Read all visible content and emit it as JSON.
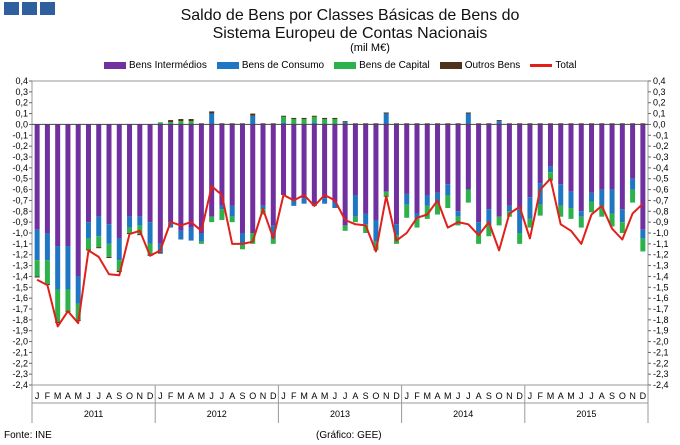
{
  "header": {
    "logo_colors": [
      "#2f5f9e",
      "#2f5f9e",
      "#2f5f9e"
    ],
    "title_line1": "Saldo de Bens por Classes Básicas de Bens do",
    "title_line2": "Sistema Europeu de Contas Nacionais",
    "unit": "(mil M€)"
  },
  "footer": {
    "source": "Fonte: INE",
    "credit": "(Gráfico: GEE)"
  },
  "chart_data": {
    "type": "bar",
    "stacked": true,
    "months": [
      "J",
      "F",
      "M",
      "A",
      "M",
      "J",
      "J",
      "A",
      "S",
      "O",
      "N",
      "D"
    ],
    "years": [
      "2011",
      "2012",
      "2013",
      "2014",
      "2015"
    ],
    "ylim": [
      -2.4,
      0.4
    ],
    "yticks": [
      "0,4",
      "0,3",
      "0,2",
      "0,1",
      "0,0",
      "-0,1",
      "-0,2",
      "-0,3",
      "-0,4",
      "-0,5",
      "-0,6",
      "-0,7",
      "-0,8",
      "-0,9",
      "-1,0",
      "-1,1",
      "-1,2",
      "-1,3",
      "-1,4",
      "-1,5",
      "-1,6",
      "-1,7",
      "-1,8",
      "-1,9",
      "-2,0",
      "-2,1",
      "-2,2",
      "-2,3",
      "-2,4"
    ],
    "grid": false,
    "legend_position": "top",
    "series": [
      {
        "name": "Bens Intermédios",
        "color": "#7030a0",
        "values": [
          -0.97,
          -1.0,
          -1.12,
          -1.12,
          -1.4,
          -0.9,
          -0.85,
          -0.92,
          -1.05,
          -0.85,
          -0.85,
          -0.9,
          -1.1,
          -0.9,
          -0.98,
          -0.95,
          -1.0,
          -0.85,
          -0.75,
          -0.75,
          -1.0,
          -1.0,
          -0.75,
          -0.93,
          -0.65,
          -0.7,
          -0.68,
          -0.75,
          -0.68,
          -0.72,
          -0.93,
          -0.65,
          -0.82,
          -0.88,
          -0.62,
          -0.92,
          -0.64,
          -0.82,
          -0.65,
          -0.63,
          -0.55,
          -0.8,
          -0.6,
          -0.9,
          -0.78,
          -0.85,
          -0.75,
          -0.78,
          -0.67,
          -0.54,
          -0.39,
          -0.55,
          -0.62,
          -0.8,
          -0.63,
          -0.6,
          -0.6,
          -0.78,
          -0.5,
          -0.97
        ]
      },
      {
        "name": "Bens de Consumo",
        "color": "#1f77c4",
        "values": [
          -0.28,
          -0.25,
          -0.4,
          -0.4,
          -0.25,
          -0.15,
          -0.18,
          -0.18,
          -0.2,
          -0.1,
          -0.08,
          -0.2,
          -0.08,
          -0.05,
          -0.08,
          -0.12,
          -0.08,
          0.1,
          -0.03,
          -0.1,
          -0.1,
          0.08,
          -0.03,
          -0.12,
          0.02,
          -0.05,
          -0.05,
          0.02,
          -0.05,
          -0.05,
          0.02,
          -0.2,
          -0.1,
          -0.2,
          0.1,
          -0.1,
          -0.1,
          -0.05,
          -0.1,
          -0.1,
          -0.1,
          -0.05,
          0.1,
          -0.1,
          -0.15,
          0.03,
          -0.05,
          -0.22,
          -0.2,
          -0.2,
          -0.05,
          -0.2,
          -0.15,
          -0.05,
          -0.08,
          -0.15,
          -0.22,
          -0.12,
          -0.1,
          -0.08
        ]
      },
      {
        "name": "Bens de Capital",
        "color": "#2db24b",
        "values": [
          -0.15,
          -0.22,
          -0.3,
          -0.2,
          -0.15,
          -0.1,
          -0.1,
          -0.12,
          -0.1,
          -0.05,
          -0.08,
          -0.1,
          0.02,
          0.02,
          0.03,
          0.03,
          -0.02,
          -0.05,
          -0.1,
          -0.05,
          -0.05,
          -0.1,
          -0.05,
          -0.05,
          0.05,
          0.05,
          0.05,
          0.05,
          0.05,
          0.05,
          -0.05,
          -0.05,
          -0.08,
          -0.08,
          -0.05,
          -0.08,
          -0.12,
          -0.08,
          -0.12,
          -0.1,
          -0.12,
          -0.08,
          -0.12,
          -0.1,
          -0.1,
          -0.08,
          -0.05,
          -0.1,
          -0.08,
          -0.1,
          -0.08,
          -0.1,
          -0.1,
          -0.1,
          -0.1,
          -0.1,
          -0.12,
          -0.1,
          -0.12,
          -0.12
        ]
      },
      {
        "name": "Outros Bens",
        "color": "#4d3319",
        "values": [
          -0.01,
          -0.01,
          -0.01,
          -0.01,
          -0.01,
          -0.01,
          -0.01,
          -0.01,
          -0.01,
          -0.01,
          -0.01,
          -0.01,
          -0.01,
          0.02,
          0.02,
          0.02,
          0.01,
          0.02,
          0.01,
          0.01,
          0.01,
          0.02,
          0.01,
          0.01,
          0.01,
          0.01,
          0.01,
          0.01,
          0.01,
          0.01,
          0.01,
          0.01,
          0.01,
          0.01,
          0.01,
          0.01,
          0.01,
          0.01,
          0.01,
          0.01,
          0.01,
          0.01,
          0.01,
          0.01,
          0.01,
          0.01,
          0.01,
          0.01,
          0.01,
          0.01,
          0.01,
          0.01,
          0.01,
          0.01,
          0.01,
          0.01,
          0.01,
          0.01,
          0.01,
          0.01
        ]
      },
      {
        "name": "Total",
        "color": "#e0201b",
        "type": "line",
        "values": [
          -1.43,
          -1.48,
          -1.86,
          -1.72,
          -1.83,
          -1.16,
          -1.22,
          -1.38,
          -1.39,
          -1.01,
          -0.98,
          -1.21,
          -1.16,
          -0.9,
          -0.93,
          -0.9,
          -0.98,
          -0.57,
          -0.65,
          -1.1,
          -1.1,
          -1.08,
          -0.78,
          -1.05,
          -0.65,
          -0.7,
          -0.65,
          -0.75,
          -0.65,
          -0.7,
          -0.88,
          -0.92,
          -0.93,
          -1.17,
          -0.66,
          -1.07,
          -1.0,
          -0.86,
          -0.83,
          -0.7,
          -0.95,
          -0.9,
          -0.92,
          -1.02,
          -0.9,
          -1.16,
          -0.82,
          -0.76,
          -1.05,
          -0.6,
          -0.5,
          -0.92,
          -0.98,
          -1.1,
          -0.83,
          -0.75,
          -0.96,
          -1.06,
          -0.82,
          -0.73
        ]
      }
    ]
  }
}
